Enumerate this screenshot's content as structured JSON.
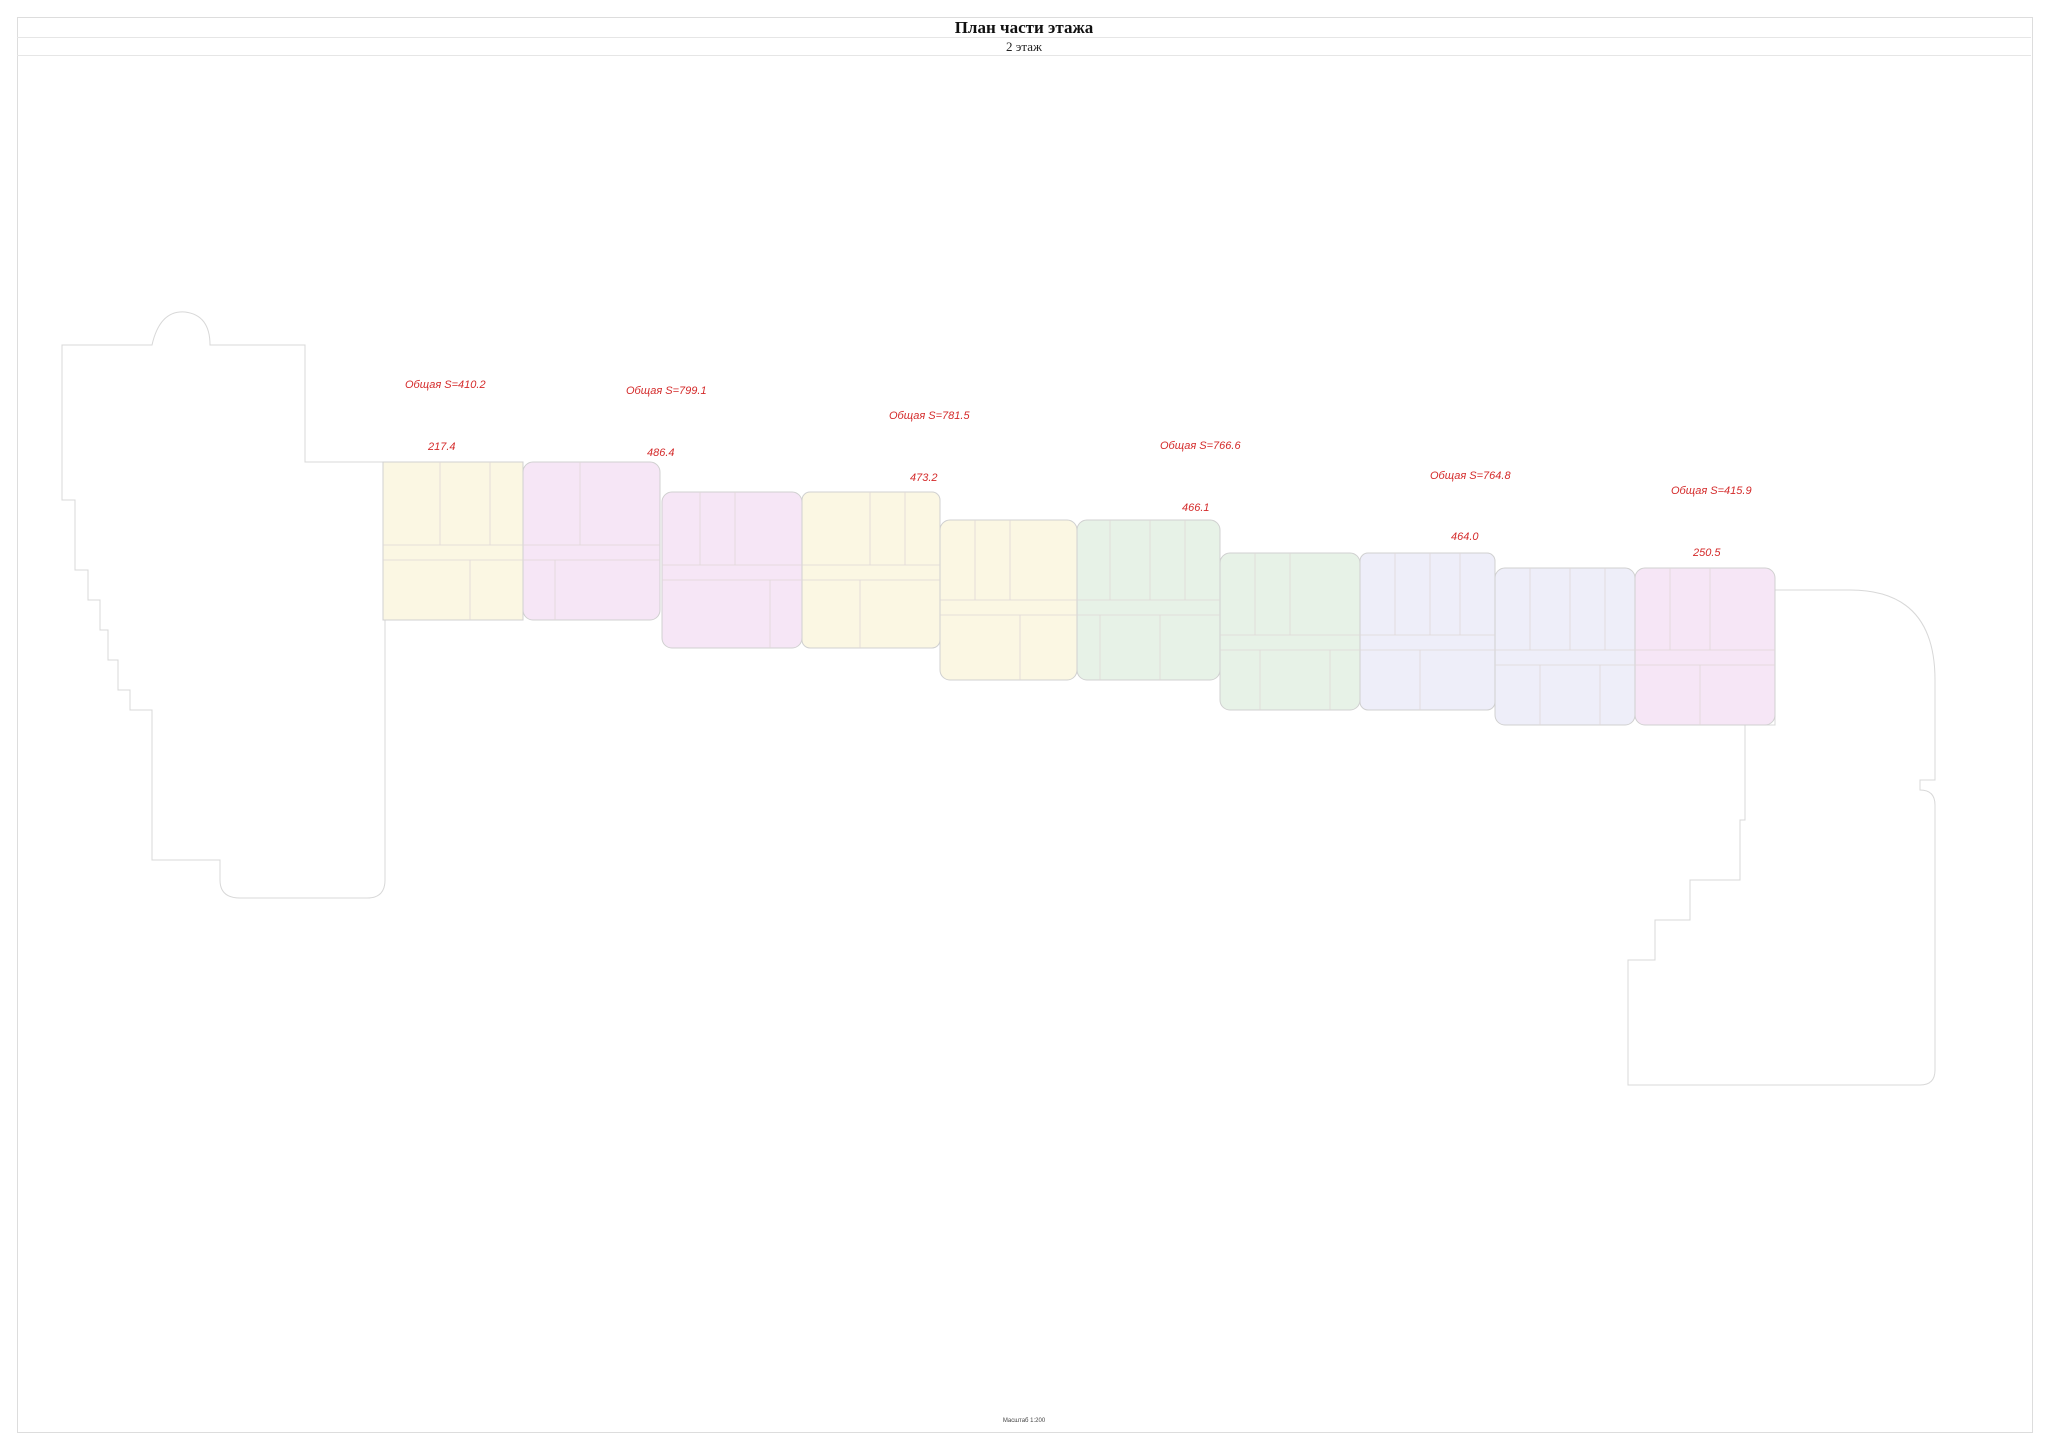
{
  "header": {
    "title": "План части этажа",
    "subtitle": "2 этаж"
  },
  "footer": {
    "scale": "Масштаб 1:200"
  },
  "colors": {
    "annotation": "#d42a2a",
    "yellow": "#fbf7e3",
    "pink": "#f6e6f6",
    "green": "#e7f2e7",
    "lavender": "#eeeef9"
  },
  "sections": [
    {
      "total": "Общая S=410.2",
      "area": "217.4"
    },
    {
      "total": "Общая S=799.1",
      "area": "486.4"
    },
    {
      "total": "Общая S=781.5",
      "area": "473.2"
    },
    {
      "total": "Общая S=766.6",
      "area": "466.1"
    },
    {
      "total": "Общая S=764.8",
      "area": "464.0"
    },
    {
      "total": "Общая S=415.9",
      "area": "250.5"
    }
  ]
}
